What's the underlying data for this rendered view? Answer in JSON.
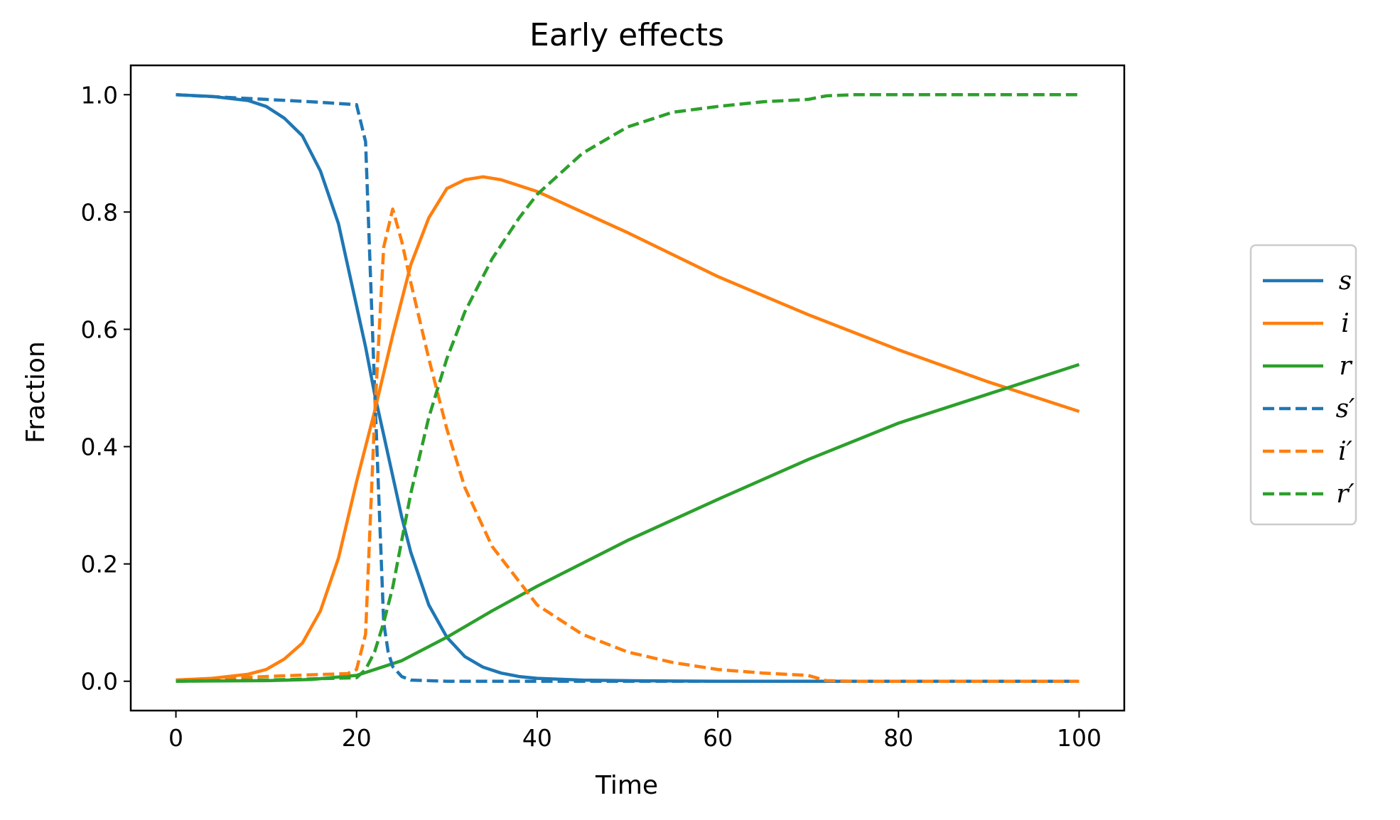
{
  "chart_data": {
    "type": "line",
    "title": "Early effects",
    "xlabel": "Time",
    "ylabel": "Fraction",
    "xlim": [
      -5,
      105
    ],
    "ylim": [
      -0.05,
      1.05
    ],
    "xticks": [
      0,
      20,
      40,
      60,
      80,
      100
    ],
    "xtick_labels": [
      "0",
      "20",
      "40",
      "60",
      "80",
      "100"
    ],
    "yticks": [
      0.0,
      0.2,
      0.4,
      0.6,
      0.8,
      1.0
    ],
    "ytick_labels": [
      "0.0",
      "0.2",
      "0.4",
      "0.6",
      "0.8",
      "1.0"
    ],
    "grid": false,
    "legend_position": "right, outside plot",
    "series": [
      {
        "name": "s",
        "label": "s",
        "color": "#1f77b4",
        "style": "solid",
        "x": [
          0,
          4,
          8,
          10,
          12,
          14,
          16,
          18,
          20,
          21,
          22,
          23,
          24,
          25,
          26,
          28,
          30,
          32,
          34,
          36,
          38,
          40,
          45,
          50,
          60,
          100
        ],
        "y": [
          1.0,
          0.997,
          0.99,
          0.98,
          0.96,
          0.93,
          0.87,
          0.78,
          0.64,
          0.57,
          0.49,
          0.42,
          0.35,
          0.28,
          0.22,
          0.13,
          0.075,
          0.042,
          0.024,
          0.014,
          0.008,
          0.005,
          0.002,
          0.001,
          0.0,
          0.0
        ]
      },
      {
        "name": "i",
        "label": "i",
        "color": "#ff7f0e",
        "style": "solid",
        "x": [
          0,
          4,
          8,
          10,
          12,
          14,
          16,
          18,
          20,
          22,
          24,
          26,
          28,
          30,
          32,
          34,
          36,
          40,
          50,
          60,
          70,
          80,
          90,
          100
        ],
        "y": [
          0.002,
          0.005,
          0.012,
          0.02,
          0.038,
          0.065,
          0.12,
          0.21,
          0.34,
          0.46,
          0.59,
          0.71,
          0.79,
          0.84,
          0.855,
          0.86,
          0.855,
          0.835,
          0.765,
          0.69,
          0.625,
          0.565,
          0.51,
          0.46
        ]
      },
      {
        "name": "r",
        "label": "r",
        "color": "#2ca02c",
        "style": "solid",
        "x": [
          0,
          10,
          15,
          20,
          25,
          30,
          35,
          40,
          50,
          60,
          70,
          80,
          90,
          100
        ],
        "y": [
          0.0,
          0.001,
          0.003,
          0.01,
          0.035,
          0.075,
          0.12,
          0.162,
          0.24,
          0.31,
          0.378,
          0.44,
          0.49,
          0.54
        ]
      },
      {
        "name": "s'",
        "label": "s′",
        "color": "#1f77b4",
        "style": "dashed",
        "x": [
          0,
          5,
          10,
          15,
          20,
          21,
          22,
          23,
          23.5,
          24,
          25,
          26,
          30,
          40,
          100
        ],
        "y": [
          1.0,
          0.996,
          0.992,
          0.988,
          0.983,
          0.92,
          0.5,
          0.1,
          0.05,
          0.025,
          0.008,
          0.002,
          0.0,
          0.0,
          0.0
        ]
      },
      {
        "name": "i'",
        "label": "i′",
        "color": "#ff7f0e",
        "style": "dashed",
        "x": [
          0,
          5,
          10,
          15,
          19,
          20,
          21,
          22,
          23,
          24,
          25,
          26,
          28,
          30,
          32,
          35,
          40,
          45,
          50,
          55,
          60,
          65,
          70,
          72,
          75,
          100
        ],
        "y": [
          0.002,
          0.005,
          0.008,
          0.011,
          0.013,
          0.02,
          0.08,
          0.45,
          0.74,
          0.805,
          0.75,
          0.68,
          0.55,
          0.43,
          0.33,
          0.23,
          0.13,
          0.08,
          0.05,
          0.032,
          0.02,
          0.014,
          0.01,
          0.001,
          0.0,
          0.0
        ]
      },
      {
        "name": "r'",
        "label": "r′",
        "color": "#2ca02c",
        "style": "dashed",
        "x": [
          0,
          10,
          15,
          20,
          21,
          22,
          23,
          24,
          25,
          26,
          28,
          30,
          32,
          35,
          38,
          40,
          45,
          50,
          55,
          60,
          65,
          70,
          72,
          75,
          100
        ],
        "y": [
          0.0,
          0.002,
          0.004,
          0.006,
          0.02,
          0.05,
          0.1,
          0.16,
          0.24,
          0.32,
          0.45,
          0.55,
          0.63,
          0.72,
          0.79,
          0.83,
          0.9,
          0.945,
          0.97,
          0.98,
          0.988,
          0.992,
          0.998,
          1.0,
          1.0
        ]
      }
    ]
  }
}
